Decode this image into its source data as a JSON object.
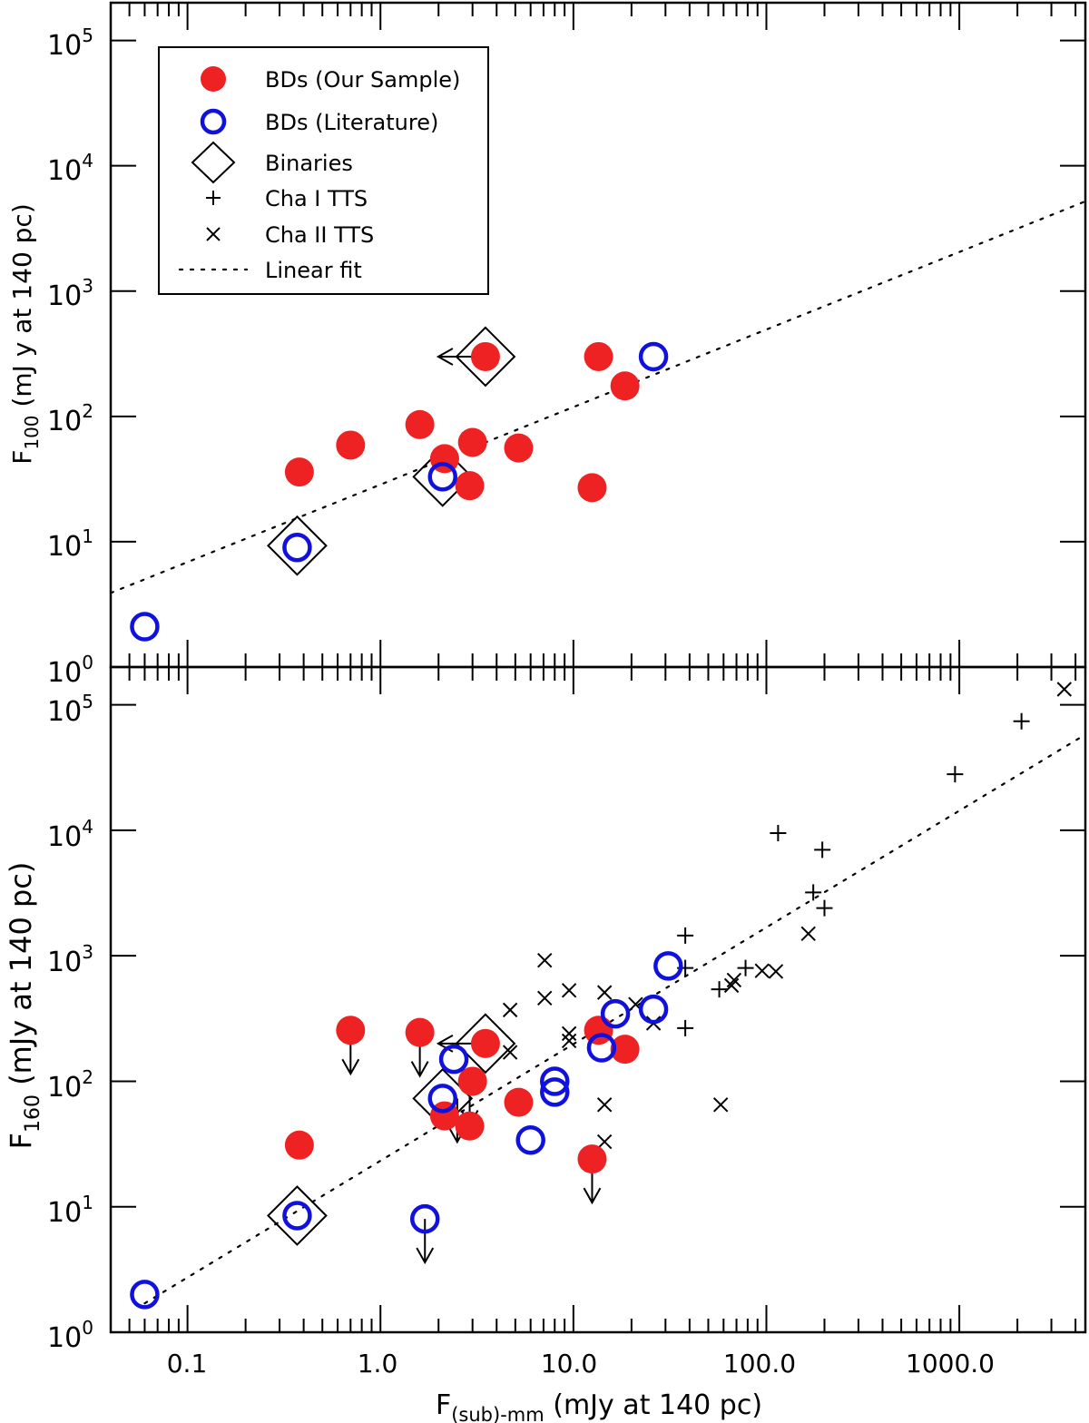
{
  "colors": {
    "our_sample": "#ee2222",
    "literature": "#1111dd",
    "ink": "#000000"
  },
  "legend": {
    "our_sample": "BDs (Our Sample)",
    "literature": "BDs (Literature)",
    "binaries": "Binaries",
    "cha1": "Cha I TTS",
    "cha2": "Cha II TTS",
    "fit": "Linear fit"
  },
  "chart_data": [
    {
      "type": "scatter",
      "panel": "top",
      "xlabel_main": "F",
      "xlabel_sub": "(sub)-mm",
      "xlabel_rest": " (mJy at 140 pc)",
      "ylabel_main": "F",
      "ylabel_sub": "100",
      "ylabel_rest": " (mJ y at 140 pc)",
      "xscale": "log",
      "yscale": "log",
      "xlim": [
        0.04,
        4500
      ],
      "ylim": [
        1,
        200000
      ],
      "x_tick_labels": [
        "0.1",
        "1.0",
        "10.0",
        "100.0",
        "1000.0"
      ],
      "y_tick_labels": [
        {
          "base": "10",
          "exp": "0"
        },
        {
          "base": "10",
          "exp": "1"
        },
        {
          "base": "10",
          "exp": "2"
        },
        {
          "base": "10",
          "exp": "3"
        },
        {
          "base": "10",
          "exp": "4"
        },
        {
          "base": "10",
          "exp": "5"
        }
      ],
      "series": [
        {
          "name": "BDs (Our Sample)",
          "points": [
            [
              0.38,
              36
            ],
            [
              0.7,
              59
            ],
            [
              1.6,
              86
            ],
            [
              2.15,
              46
            ],
            [
              2.9,
              28
            ],
            [
              3.0,
              62
            ],
            [
              3.5,
              300
            ],
            [
              5.2,
              56
            ],
            [
              12.5,
              27
            ],
            [
              13.5,
              300
            ],
            [
              18.5,
              175
            ]
          ]
        },
        {
          "name": "BDs (Literature)",
          "points": [
            [
              0.06,
              2.1
            ],
            [
              0.37,
              9
            ],
            [
              2.1,
              33
            ],
            [
              26,
              300
            ]
          ]
        },
        {
          "name": "Binaries",
          "points": [
            [
              0.37,
              9.3
            ],
            [
              2.1,
              33
            ],
            [
              3.5,
              300
            ]
          ]
        },
        {
          "name": "Upper limits (left arrows)",
          "points": [
            [
              3.5,
              300
            ]
          ]
        }
      ],
      "fit": {
        "x": [
          0.04,
          4500
        ],
        "y": [
          3.9,
          5200
        ]
      }
    },
    {
      "type": "scatter",
      "panel": "bottom",
      "xlabel_main": "F",
      "xlabel_sub": "(sub)-mm",
      "xlabel_rest": " (mJy at 140 pc)",
      "ylabel_main": "F",
      "ylabel_sub": "160",
      "ylabel_rest": " (mJy at 140 pc)",
      "xscale": "log",
      "yscale": "log",
      "xlim": [
        0.04,
        4500
      ],
      "ylim": [
        1,
        200000
      ],
      "x_tick_labels": [
        "0.1",
        "1.0",
        "10.0",
        "100.0",
        "1000.0"
      ],
      "y_tick_labels": [
        {
          "base": "10",
          "exp": "0"
        },
        {
          "base": "10",
          "exp": "1"
        },
        {
          "base": "10",
          "exp": "2"
        },
        {
          "base": "10",
          "exp": "3"
        },
        {
          "base": "10",
          "exp": "4"
        },
        {
          "base": "10",
          "exp": "5"
        }
      ],
      "series": [
        {
          "name": "BDs (Our Sample)",
          "points": [
            [
              0.38,
              31
            ],
            [
              0.7,
              255
            ],
            [
              1.6,
              245
            ],
            [
              2.15,
              53
            ],
            [
              2.9,
              44
            ],
            [
              3.0,
              100
            ],
            [
              3.5,
              200
            ],
            [
              5.2,
              68
            ],
            [
              12.5,
              24
            ],
            [
              13.5,
              255
            ],
            [
              18.5,
              180
            ]
          ]
        },
        {
          "name": "BDs (Literature)",
          "points": [
            [
              0.06,
              2
            ],
            [
              0.37,
              8.5
            ],
            [
              1.7,
              8
            ],
            [
              2.1,
              73
            ],
            [
              2.4,
              150
            ],
            [
              6.0,
              34
            ],
            [
              8.0,
              100
            ],
            [
              8.0,
              82
            ],
            [
              14,
              185
            ],
            [
              16.5,
              345
            ],
            [
              26,
              375
            ],
            [
              31,
              830
            ]
          ]
        },
        {
          "name": "Binaries",
          "points": [
            [
              0.37,
              8.5
            ],
            [
              2.1,
              73
            ],
            [
              3.5,
              200
            ]
          ]
        },
        {
          "name": "Cha I TTS",
          "points": [
            [
              38,
              1450
            ],
            [
              38,
              800
            ],
            [
              38,
              265
            ],
            [
              57,
              540
            ],
            [
              78,
              800
            ],
            [
              115,
              9500
            ],
            [
              175,
              3200
            ],
            [
              195,
              7000
            ],
            [
              200,
              2400
            ],
            [
              950,
              28000
            ],
            [
              2100,
              74000
            ]
          ]
        },
        {
          "name": "Cha II TTS",
          "points": [
            [
              4.7,
              370
            ],
            [
              4.7,
              170
            ],
            [
              7.1,
              920
            ],
            [
              7.1,
              460
            ],
            [
              9.5,
              530
            ],
            [
              9.5,
              240
            ],
            [
              9.5,
              210
            ],
            [
              14.5,
              510
            ],
            [
              14.5,
              65
            ],
            [
              14.5,
              33
            ],
            [
              21,
              410
            ],
            [
              26,
              290
            ],
            [
              58,
              65
            ],
            [
              66,
              580
            ],
            [
              68,
              640
            ],
            [
              95,
              760
            ],
            [
              112,
              750
            ],
            [
              165,
              1500
            ],
            [
              3500,
              133000
            ]
          ]
        },
        {
          "name": "Upper limits (down arrows)",
          "points": [
            [
              0.7,
              255
            ],
            [
              1.6,
              245
            ],
            [
              1.7,
              8
            ],
            [
              2.9,
              100
            ],
            [
              2.5,
              73
            ],
            [
              12.5,
              24
            ]
          ]
        },
        {
          "name": "Upper limits (left arrows)",
          "points": [
            [
              3.5,
              200
            ]
          ]
        }
      ],
      "fit": {
        "x": [
          0.06,
          4500
        ],
        "y": [
          1.7,
          58000
        ]
      }
    }
  ]
}
